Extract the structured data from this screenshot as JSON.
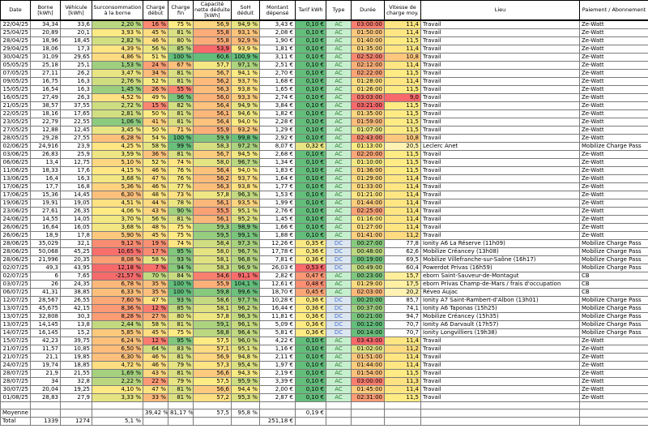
{
  "table": {
    "columns": [
      {
        "key": "date",
        "label": "Date"
      },
      {
        "key": "borne",
        "label": "Borne [kWh]"
      },
      {
        "key": "vehicule",
        "label": "Véhicule [kWh]"
      },
      {
        "key": "surconsommation",
        "label": "Surconsommation à la borne"
      },
      {
        "key": "charge-debut",
        "label": "Charge début"
      },
      {
        "key": "charge-fin",
        "label": "Charge fin"
      },
      {
        "key": "capacite",
        "label": "Capacité nette déduite [kWh]"
      },
      {
        "key": "soh",
        "label": "SoH déduit"
      },
      {
        "key": "montant",
        "label": "Montant dépensé"
      },
      {
        "key": "tarif",
        "label": "Tarif kWh"
      },
      {
        "key": "type",
        "label": "Type"
      },
      {
        "key": "duree",
        "label": "Durée"
      },
      {
        "key": "vitesse",
        "label": "Vitesse de charge moy."
      },
      {
        "key": "lieu",
        "label": "Lieu"
      },
      {
        "key": "paiement",
        "label": "Paiement / Abonnement"
      }
    ],
    "rows": [
      [
        "22/04/25",
        "34,34",
        "33,6",
        "2,20 %",
        "16 %",
        "75 %",
        "56,9",
        "94,9 %",
        "3,43 €",
        "0,10 €",
        "AC",
        "03:00:00",
        "11,4",
        "Travail",
        "Ze-Watt"
      ],
      [
        "25/04/25",
        "20,89",
        "20,1",
        "3,93 %",
        "45 %",
        "81 %",
        "55,8",
        "93,1 %",
        "2,08 €",
        "0,10 €",
        "AC",
        "01:50:00",
        "11,4",
        "Travail",
        "Ze-Watt"
      ],
      [
        "28/04/25",
        "18,96",
        "18,45",
        "2,82 %",
        "46 %",
        "80 %",
        "55,8",
        "92,9 %",
        "1,90 €",
        "0,10 €",
        "AC",
        "01:40:00",
        "11,5",
        "Travail",
        "Ze-Watt"
      ],
      [
        "29/04/25",
        "18,06",
        "17,3",
        "4,39 %",
        "56 %",
        "85 %",
        "53,9",
        "93,9 %",
        "1,81 €",
        "0,10 €",
        "AC",
        "01:35:00",
        "11,4",
        "Travail",
        "Ze-Watt"
      ],
      [
        "30/04/25",
        "31,09",
        "29,65",
        "4,86 %",
        "51 %",
        "100 %",
        "60,6",
        "100,9 %",
        "3,11 €",
        "0,10 €",
        "AC",
        "02:52:00",
        "10,8",
        "Travail",
        "Ze-Watt"
      ],
      [
        "05/05/25",
        "25,18",
        "25,1",
        "1,53 %",
        "24 %",
        "67 %",
        "57,7",
        "97,1 %",
        "2,51 €",
        "0,10 €",
        "AC",
        "02:12:00",
        "11,4",
        "Travail",
        "Ze-Watt"
      ],
      [
        "07/05/25",
        "27,11",
        "26,2",
        "3,47 %",
        "34 %",
        "81 %",
        "56,7",
        "94,1 %",
        "2,70 €",
        "0,10 €",
        "AC",
        "02:22:00",
        "11,5",
        "Travail",
        "Ze-Watt"
      ],
      [
        "09/05/25",
        "16,75",
        "16,3",
        "2,76 %",
        "52 %",
        "81 %",
        "56,2",
        "93,7 %",
        "1,68 €",
        "0,10 €",
        "AC",
        "01:28:00",
        "11,4",
        "Travail",
        "Ze-Watt"
      ],
      [
        "15/05/25",
        "16,54",
        "16,3",
        "1,45 %",
        "26 %",
        "55 %",
        "56,3",
        "93,8 %",
        "1,65 €",
        "0,10 €",
        "AC",
        "01:26:00",
        "11,5",
        "Travail",
        "Ze-Watt"
      ],
      [
        "16/05/25",
        "27,49",
        "26,3",
        "4,52 %",
        "49 %",
        "96 %",
        "56,0",
        "93,3 %",
        "2,74 €",
        "0,10 €",
        "AC",
        "03:03:00",
        "9,0",
        "Travail",
        "Ze-Watt"
      ],
      [
        "21/05/25",
        "38,57",
        "37,55",
        "2,72 %",
        "15 %",
        "82 %",
        "56,4",
        "94,9 %",
        "3,84 €",
        "0,10 €",
        "AC",
        "03:21:00",
        "11,5",
        "Travail",
        "Ze-Watt"
      ],
      [
        "22/05/25",
        "18,16",
        "17,65",
        "2,81 %",
        "50 %",
        "81 %",
        "56,1",
        "94,6 %",
        "1,82 €",
        "0,10 €",
        "AC",
        "01:35:00",
        "11,5",
        "Travail",
        "Ze-Watt"
      ],
      [
        "23/05/25",
        "22,79",
        "22,55",
        "1,06 %",
        "41 %",
        "81 %",
        "56,4",
        "94,0 %",
        "2,28 €",
        "0,10 €",
        "AC",
        "01:59:00",
        "11,5",
        "Travail",
        "Ze-Watt"
      ],
      [
        "27/05/25",
        "12,88",
        "12,45",
        "3,45 %",
        "50 %",
        "71 %",
        "55,9",
        "93,2 %",
        "1,29 €",
        "0,10 €",
        "AC",
        "01:07:00",
        "11,5",
        "Travail",
        "Ze-Watt"
      ],
      [
        "28/05/25",
        "29,28",
        "27,55",
        "6,28 %",
        "54 %",
        "100 %",
        "59,9",
        "99,8 %",
        "2,92 €",
        "0,10 €",
        "AC",
        "02:43:00",
        "10,8",
        "Travail",
        "Ze-Watt"
      ],
      [
        "02/06/25",
        "24,916",
        "23,9",
        "4,25 %",
        "58 %",
        "99 %",
        "58,3",
        "97,2 %",
        "8,07 €",
        "0,32 €",
        "AC",
        "01:13:00",
        "20,5",
        "Leclerc Anet",
        "Mobilize Charge Pass"
      ],
      [
        "03/06/25",
        "26,83",
        "25,9",
        "3,59 %",
        "36 %",
        "81 %",
        "56,7",
        "94,5 %",
        "2,68 €",
        "0,10 €",
        "AC",
        "02:20:00",
        "11,5",
        "Travail",
        "Ze-Watt"
      ],
      [
        "06/06/25",
        "13,4",
        "12,75",
        "5,10 %",
        "52 %",
        "74 %",
        "58,0",
        "96,7 %",
        "1,34 €",
        "0,10 €",
        "AC",
        "01:10:00",
        "11,5",
        "Travail",
        "Ze-Watt"
      ],
      [
        "11/06/25",
        "18,33",
        "17,6",
        "4,15 %",
        "46 %",
        "76 %",
        "56,4",
        "94,0 %",
        "1,83 €",
        "0,10 €",
        "AC",
        "01:36:00",
        "11,5",
        "Travail",
        "Ze-Watt"
      ],
      [
        "13/06/25",
        "16,4",
        "16,3",
        "3,68 %",
        "47 %",
        "76 %",
        "56,2",
        "93,7 %",
        "1,64 €",
        "0,10 €",
        "AC",
        "01:29:00",
        "11,4",
        "Travail",
        "Ze-Watt"
      ],
      [
        "17/06/25",
        "17,7",
        "16,8",
        "5,36 %",
        "46 %",
        "77 %",
        "56,3",
        "93,8 %",
        "1,77 €",
        "0,10 €",
        "AC",
        "01:33:00",
        "11,4",
        "Travail",
        "Ze-Watt"
      ],
      [
        "17/06/25",
        "15,36",
        "14,45",
        "6,30 %",
        "48 %",
        "73 %",
        "57,8",
        "96,3 %",
        "1,53 €",
        "0,10 €",
        "AC",
        "01:21:00",
        "11,4",
        "Travail",
        "Ze-Watt"
      ],
      [
        "19/06/25",
        "19,91",
        "19,05",
        "4,51 %",
        "44 %",
        "78 %",
        "56,1",
        "93,5 %",
        "1,99 €",
        "0,10 €",
        "AC",
        "01:44:00",
        "11,4",
        "Travail",
        "Ze-Watt"
      ],
      [
        "23/06/25",
        "27,61",
        "26,35",
        "4,06 %",
        "43 %",
        "90 %",
        "55,5",
        "95,1 %",
        "2,76 €",
        "0,10 €",
        "AC",
        "02:25:00",
        "11,4",
        "Travail",
        "Ze-Watt"
      ],
      [
        "24/06/25",
        "14,55",
        "14,05",
        "3,70 %",
        "56 %",
        "81 %",
        "56,1",
        "95,2 %",
        "1,45 €",
        "0,10 €",
        "AC",
        "01:16:00",
        "11,4",
        "Travail",
        "Ze-Watt"
      ],
      [
        "26/06/25",
        "16,64",
        "16,05",
        "3,68 %",
        "48 %",
        "75 %",
        "59,3",
        "98,9 %",
        "1,66 €",
        "0,10 €",
        "AC",
        "01:27:00",
        "11,4",
        "Travail",
        "Ze-Watt"
      ],
      [
        "26/06/25",
        "18,9",
        "17,8",
        "5,90 %",
        "45 %",
        "75 %",
        "59,5",
        "99,1 %",
        "1,88 €",
        "0,10 €",
        "AC",
        "01:41:00",
        "11,2",
        "Travail",
        "Ze-Watt"
      ],
      [
        "28/06/25",
        "35,029",
        "32,1",
        "9,12 %",
        "19 %",
        "74 %",
        "58,4",
        "97,3 %",
        "12,26 €",
        "0,35 €",
        "DC",
        "00:27:00",
        "77,8",
        "Ionity A6 La Réserve (11h09)",
        "Mobilize Charge Pass"
      ],
      [
        "28/06/25",
        "50,068",
        "45,25",
        "10,65 %",
        "17 %",
        "95 %",
        "58,0",
        "96,7 %",
        "17,78 €",
        "0,36 €",
        "DC",
        "00:48:00",
        "62,6",
        "Mobilize Créancey (13h08)",
        "Mobilize Charge Pass"
      ],
      [
        "28/06/25",
        "21,996",
        "20,35",
        "8,08 %",
        "58 %",
        "93 %",
        "58,1",
        "96,8 %",
        "7,81 €",
        "0,36 €",
        "DC",
        "00:19:00",
        "69,5",
        "Mobilize Villefranche-sur-Saône (16h17)",
        "Mobilize Charge Pass"
      ],
      [
        "02/07/25",
        "49,3",
        "43,95",
        "12,18 %",
        "7 %",
        "94 %",
        "58,3",
        "96,9 %",
        "26,03 €",
        "0,53 €",
        "DC",
        "00:49:00",
        "60,4",
        "Powerdot Privas (16h59)",
        "Mobilize Charge Pass"
      ],
      [
        "02/07/25",
        "6",
        "7,65",
        "-21,57 %",
        "70 %",
        "84 %",
        "54,6",
        "91,1 %",
        "2,82 €",
        "0,47 €",
        "AC",
        "00:23:00",
        "15,7",
        "eborn Saint-Sauveur-de-Montagut",
        "CB"
      ],
      [
        "03/07/25",
        "26",
        "24,35",
        "6,78 %",
        "35 %",
        "100 %",
        "55,9",
        "104,1 %",
        "12,61 €",
        "0,48 €",
        "AC",
        "01:29:00",
        "17,5",
        "eborn Privas Champ-de-Mars / frais d'occupation",
        "CB"
      ],
      [
        "06/07/25",
        "41,31",
        "38,85",
        "6,33 %",
        "35 %",
        "100 %",
        "59,8",
        "99,6 %",
        "18,70 €",
        "0,45 €",
        "AC",
        "02:03:00",
        "20,2",
        "Réveo Aujac",
        "CB"
      ],
      [
        "12/07/25",
        "28,567",
        "26,55",
        "7,60 %",
        "47 %",
        "93 %",
        "58,6",
        "97,7 %",
        "10,28 €",
        "0,36 €",
        "DC",
        "00:20:00",
        "85,7",
        "Ionity A7 Saint-Rambert-d'Albon (13h01)",
        "Mobilize Charge Pass"
      ],
      [
        "13/07/25",
        "45,675",
        "42,15",
        "8,36 %",
        "12 %",
        "85 %",
        "58,1",
        "96,2 %",
        "16,44 €",
        "0,36 €",
        "DC",
        "00:37:00",
        "74,1",
        "Ionity A6 Taponas (15h25)",
        "Mobilize Charge Pass"
      ],
      [
        "13/07/25",
        "32,808",
        "30,3",
        "8,28 %",
        "27 %",
        "80 %",
        "57,8",
        "96,3 %",
        "11,81 €",
        "0,36 €",
        "DC",
        "00:21:00",
        "94,7",
        "Mobilize Créancey (15h35)",
        "Mobilize Charge Pass"
      ],
      [
        "13/07/25",
        "14,145",
        "13,8",
        "2,44 %",
        "58 %",
        "81 %",
        "59,1",
        "96,1 %",
        "5,09 €",
        "0,36 €",
        "DC",
        "00:12:00",
        "70,7",
        "Ionity A6 Darvault (17h57)",
        "Mobilize Charge Pass"
      ],
      [
        "14/07/25",
        "16,145",
        "15,2",
        "5,85 %",
        "45 %",
        "75 %",
        "58,8",
        "96,4 %",
        "5,81 €",
        "0,36 €",
        "DC",
        "00:14:00",
        "70,7",
        "Ionity Longvilliers (19h38)",
        "Mobilize Charge Pass"
      ],
      [
        "15/07/25",
        "42,23",
        "39,75",
        "6,24 %",
        "12 %",
        "95 %",
        "57,5",
        "96,0 %",
        "4,22 €",
        "0,10 €",
        "AC",
        "03:43:00",
        "11,4",
        "Travail",
        "Ze-Watt"
      ],
      [
        "21/07/25",
        "11,57",
        "10,85",
        "6,50 %",
        "64 %",
        "83 %",
        "57,1",
        "95,1 %",
        "1,16 €",
        "0,10 €",
        "AC",
        "01:02:00",
        "11,2",
        "Travail",
        "Ze-Watt"
      ],
      [
        "21/07/25",
        "21,1",
        "19,85",
        "6,30 %",
        "46 %",
        "81 %",
        "56,9",
        "94,8 %",
        "2,11 €",
        "0,10 €",
        "AC",
        "01:51:00",
        "11,4",
        "Travail",
        "Ze-Watt"
      ],
      [
        "24/07/25",
        "19,74",
        "18,85",
        "4,72 %",
        "46 %",
        "79 %",
        "57,3",
        "95,4 %",
        "1,97 €",
        "0,10 €",
        "AC",
        "01:44:00",
        "11,4",
        "Travail",
        "Ze-Watt"
      ],
      [
        "28/07/25",
        "21,9",
        "21,55",
        "1,69 %",
        "43 %",
        "81 %",
        "56,6",
        "94,3 %",
        "2,19 €",
        "0,10 €",
        "AC",
        "01:54:00",
        "11,5",
        "Travail",
        "Ze-Watt"
      ],
      [
        "28/07/25",
        "34",
        "32,8",
        "2,22 %",
        "22 %",
        "79 %",
        "57,5",
        "95,9 %",
        "3,39 €",
        "0,10 €",
        "AC",
        "03:00:00",
        "11,3",
        "Travail",
        "Ze-Watt"
      ],
      [
        "30/07/25",
        "20,04",
        "19,25",
        "4,10 %",
        "47 %",
        "81 %",
        "56,6",
        "94,4 %",
        "2,00 €",
        "0,10 €",
        "AC",
        "01:45:00",
        "11,4",
        "Travail",
        "Ze-Watt"
      ],
      [
        "01/08/25",
        "28,83",
        "27,9",
        "3,33 %",
        "33 %",
        "81 %",
        "57,2",
        "95,3 %",
        "2,87 €",
        "0,10 €",
        "AC",
        "02:31:00",
        "11,5",
        "Travail",
        "Ze-Watt"
      ]
    ],
    "summary": {
      "moyenne": {
        "label": "Moyenne",
        "cells": {
          "charge-debut": "39,42 %",
          "charge-fin": "81,17 %",
          "capacite": "57,5",
          "soh": "95,8 %",
          "tarif": "0,19 €"
        }
      },
      "total": {
        "label": "Total",
        "cells": {
          "borne": "1339",
          "vehicule": "1274",
          "surconsommation": "5,1 %",
          "montant": "251,18 €"
        }
      }
    }
  },
  "formatting": {
    "type_colors": {
      "AC": {
        "bg": "#c6efce",
        "fg": "#2e7d32"
      },
      "DC": {
        "bg": "#dce6f1",
        "fg": "#4472c4"
      }
    },
    "scales": {
      "surconsommation": [
        [
          -22,
          "#f8696b"
        ],
        [
          0,
          "#63be7b"
        ],
        [
          4,
          "#ffeb84"
        ],
        [
          11,
          "#f8696b"
        ]
      ],
      "charge-debut": [
        [
          5,
          "#f8696b"
        ],
        [
          50,
          "#ffeb84"
        ],
        [
          100,
          "#63be7b"
        ]
      ],
      "charge-fin": [
        [
          50,
          "#f8696b"
        ],
        [
          75,
          "#ffeb84"
        ],
        [
          100,
          "#63be7b"
        ]
      ],
      "capacite": [
        [
          54,
          "#f8696b"
        ],
        [
          57.5,
          "#ffeb84"
        ],
        [
          60.5,
          "#63be7b"
        ]
      ],
      "soh": [
        [
          91,
          "#f8696b"
        ],
        [
          94,
          "#ffeb84"
        ],
        [
          100,
          "#63be7b"
        ]
      ],
      "tarif": [
        [
          0.1,
          "#63be7b"
        ],
        [
          0.36,
          "#ffeb84"
        ],
        [
          0.53,
          "#f8696b"
        ]
      ],
      "duree": [
        [
          12,
          "#63be7b"
        ],
        [
          75,
          "#ffeb84"
        ],
        [
          200,
          "#f8696b"
        ]
      ],
      "vitesse": [
        [
          9,
          "#f8696b"
        ],
        [
          11.5,
          "#ffeb84"
        ],
        [
          35,
          "#ffffff"
        ],
        [
          95,
          "#ffffff"
        ]
      ]
    }
  }
}
